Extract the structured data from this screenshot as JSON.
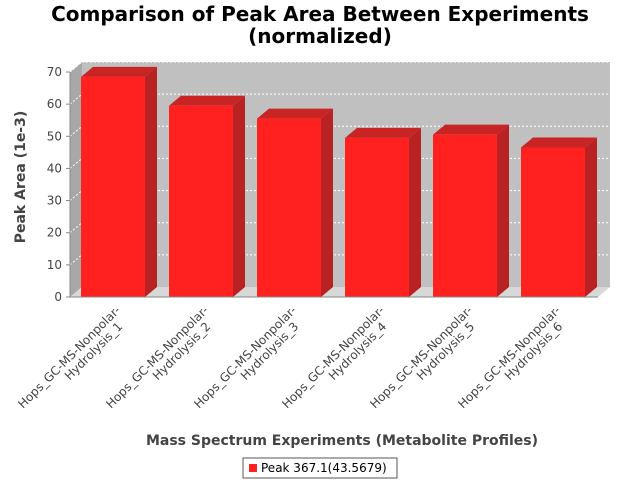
{
  "chart_data": {
    "type": "bar",
    "title": "Comparison of Peak Area Between Experiments (normalized)",
    "title_lines": [
      "Comparison of Peak Area Between Experiments",
      "(normalized)"
    ],
    "xlabel": "Mass Spectrum Experiments (Metabolite Profiles)",
    "ylabel": "Peak Area (1e-3)",
    "ylim": [
      0,
      70
    ],
    "yticks": [
      0,
      10,
      20,
      30,
      40,
      50,
      60,
      70
    ],
    "grid": true,
    "legend_position": "bottom",
    "categories": [
      "Hops_GC-MS-Nonpolar-Hydrolysis_1",
      "Hops_GC-MS-Nonpolar-Hydrolysis_2",
      "Hops_GC-MS-Nonpolar-Hydrolysis_3",
      "Hops_GC-MS-Nonpolar-Hydrolysis_4",
      "Hops_GC-MS-Nonpolar-Hydrolysis_5",
      "Hops_GC-MS-Nonpolar-Hydrolysis_6"
    ],
    "category_label_lines": [
      [
        "Hops_GC-MS-Nonpolar-",
        "Hydrolysis_1"
      ],
      [
        "Hops_GC-MS-Nonpolar-",
        "Hydrolysis_2"
      ],
      [
        "Hops_GC-MS-Nonpolar-",
        "Hydrolysis_3"
      ],
      [
        "Hops_GC-MS-Nonpolar-",
        "Hydrolysis_4"
      ],
      [
        "Hops_GC-MS-Nonpolar-",
        "Hydrolysis_5"
      ],
      [
        "Hops_GC-MS-Nonpolar-",
        "Hydrolysis_6"
      ]
    ],
    "series": [
      {
        "name": "Peak 367.1(43.5679)",
        "color": "#ff2020",
        "values": [
          68.5,
          59.5,
          55.5,
          49.5,
          50.5,
          46.5
        ]
      }
    ],
    "colors": {
      "plot_background": "#c0c0c0",
      "plot_side": "#a8a8a8",
      "bar_face": "#ff2020",
      "bar_top": "#c82424",
      "bar_side": "#b82222",
      "gridline": "#ffffff",
      "axis": "#888888"
    }
  }
}
